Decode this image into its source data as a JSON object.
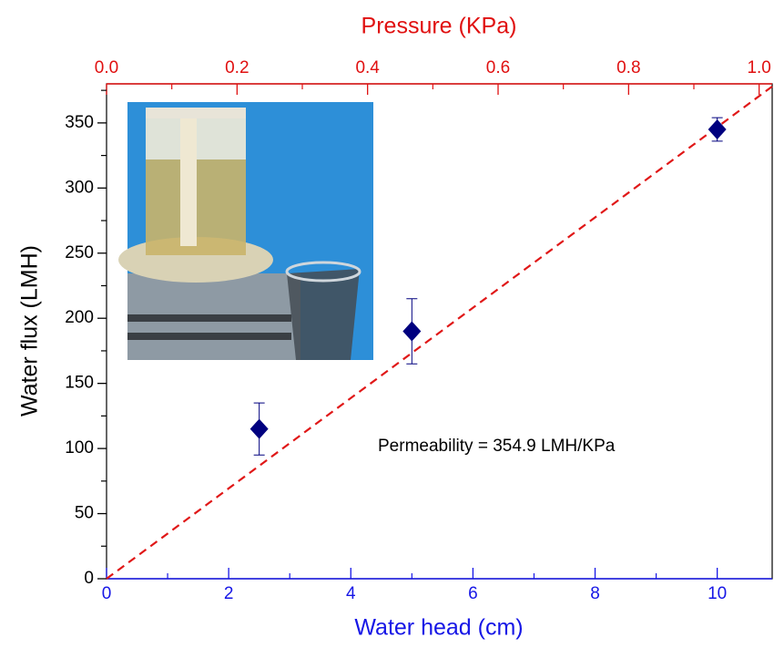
{
  "chart_data": {
    "type": "scatter",
    "xlabel": "Water head (cm)",
    "x2label": "Pressure (KPa)",
    "ylabel": "Water flux (LMH)",
    "annotation": "Permeability = 354.9 LMH/KPa",
    "xlim": [
      0,
      10.9
    ],
    "xticks": [
      0,
      2,
      4,
      6,
      8,
      10
    ],
    "xminorticks": [
      1,
      3,
      5,
      7,
      9
    ],
    "x2lim": [
      0,
      1.02
    ],
    "x2ticks": [
      {
        "value": 0,
        "label": "0.0"
      },
      0.2,
      0.4,
      0.6,
      0.8,
      {
        "value": 1,
        "label": "1.0"
      }
    ],
    "x2minorticks": [
      0.1,
      0.3,
      0.5,
      0.7,
      0.9
    ],
    "ylim": [
      0,
      380
    ],
    "yticks": [
      0,
      50,
      100,
      150,
      200,
      250,
      300,
      350
    ],
    "yminorticks": [
      25,
      75,
      125,
      175,
      225,
      275,
      325,
      375
    ],
    "xaxis_color": "#1616e6",
    "x2axis_color": "#e01010",
    "series": [
      {
        "color": "#00007f",
        "x": [
          2.5,
          5,
          10
        ],
        "values": [
          115,
          190,
          345
        ],
        "errors": [
          20,
          25,
          9
        ]
      }
    ],
    "fit": {
      "color": "#e01818",
      "x": [
        0,
        10.9
      ],
      "values": [
        0,
        378
      ]
    }
  }
}
